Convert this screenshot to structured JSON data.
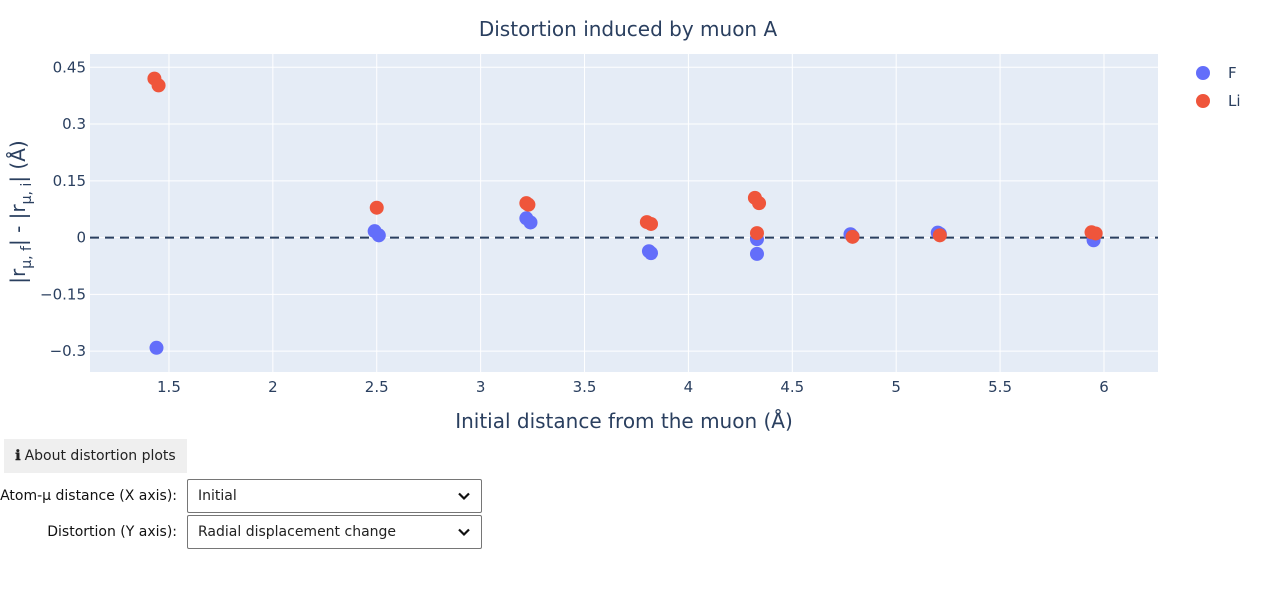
{
  "chart_data": {
    "type": "scatter",
    "title": "Distortion induced by muon A",
    "xlabel": "Initial distance from the muon (Å)",
    "ylabel_parts": [
      "|r",
      "μ, f",
      "| - |r",
      "μ, i",
      "| (Å)"
    ],
    "xlim": [
      1.12,
      6.26
    ],
    "ylim": [
      -0.355,
      0.485
    ],
    "xticks": [
      "1.5",
      "2",
      "2.5",
      "3",
      "3.5",
      "4",
      "4.5",
      "5",
      "5.5",
      "6"
    ],
    "xtick_values": [
      1.5,
      2,
      2.5,
      3,
      3.5,
      4,
      4.5,
      5,
      5.5,
      6
    ],
    "yticks": [
      "0.45",
      "0.3",
      "0.15",
      "0",
      "−0.15",
      "−0.3"
    ],
    "ytick_values": [
      0.45,
      0.3,
      0.15,
      0,
      -0.15,
      -0.3
    ],
    "reference_line": {
      "y": 0,
      "style": "dashed"
    },
    "grid": true,
    "legend": "top-right",
    "series": [
      {
        "name": "F",
        "color": "#636efa",
        "points": [
          [
            1.44,
            -0.291
          ],
          [
            2.49,
            0.017
          ],
          [
            2.51,
            0.006
          ],
          [
            3.22,
            0.051
          ],
          [
            3.24,
            0.04
          ],
          [
            3.81,
            -0.036
          ],
          [
            3.82,
            -0.041
          ],
          [
            4.33,
            -0.004
          ],
          [
            4.33,
            -0.043
          ],
          [
            4.78,
            0.009
          ],
          [
            4.79,
            0.003
          ],
          [
            5.2,
            0.013
          ],
          [
            5.21,
            0.01
          ],
          [
            5.95,
            -0.007
          ]
        ]
      },
      {
        "name": "Li",
        "color": "#ef553b",
        "points": [
          [
            1.43,
            0.42
          ],
          [
            1.45,
            0.402
          ],
          [
            2.5,
            0.079
          ],
          [
            3.22,
            0.091
          ],
          [
            3.23,
            0.087
          ],
          [
            3.8,
            0.041
          ],
          [
            3.82,
            0.036
          ],
          [
            4.32,
            0.105
          ],
          [
            4.34,
            0.091
          ],
          [
            4.33,
            0.012
          ],
          [
            4.79,
            0.002
          ],
          [
            5.21,
            0.006
          ],
          [
            5.94,
            0.014
          ],
          [
            5.96,
            0.011
          ]
        ]
      }
    ]
  },
  "controls": {
    "about_label": "About distortion plots",
    "x_axis_label": "Atom-μ distance (X axis):",
    "x_axis_value": "Initial",
    "y_axis_label": "Distortion (Y axis):",
    "y_axis_value": "Radial displacement change"
  }
}
